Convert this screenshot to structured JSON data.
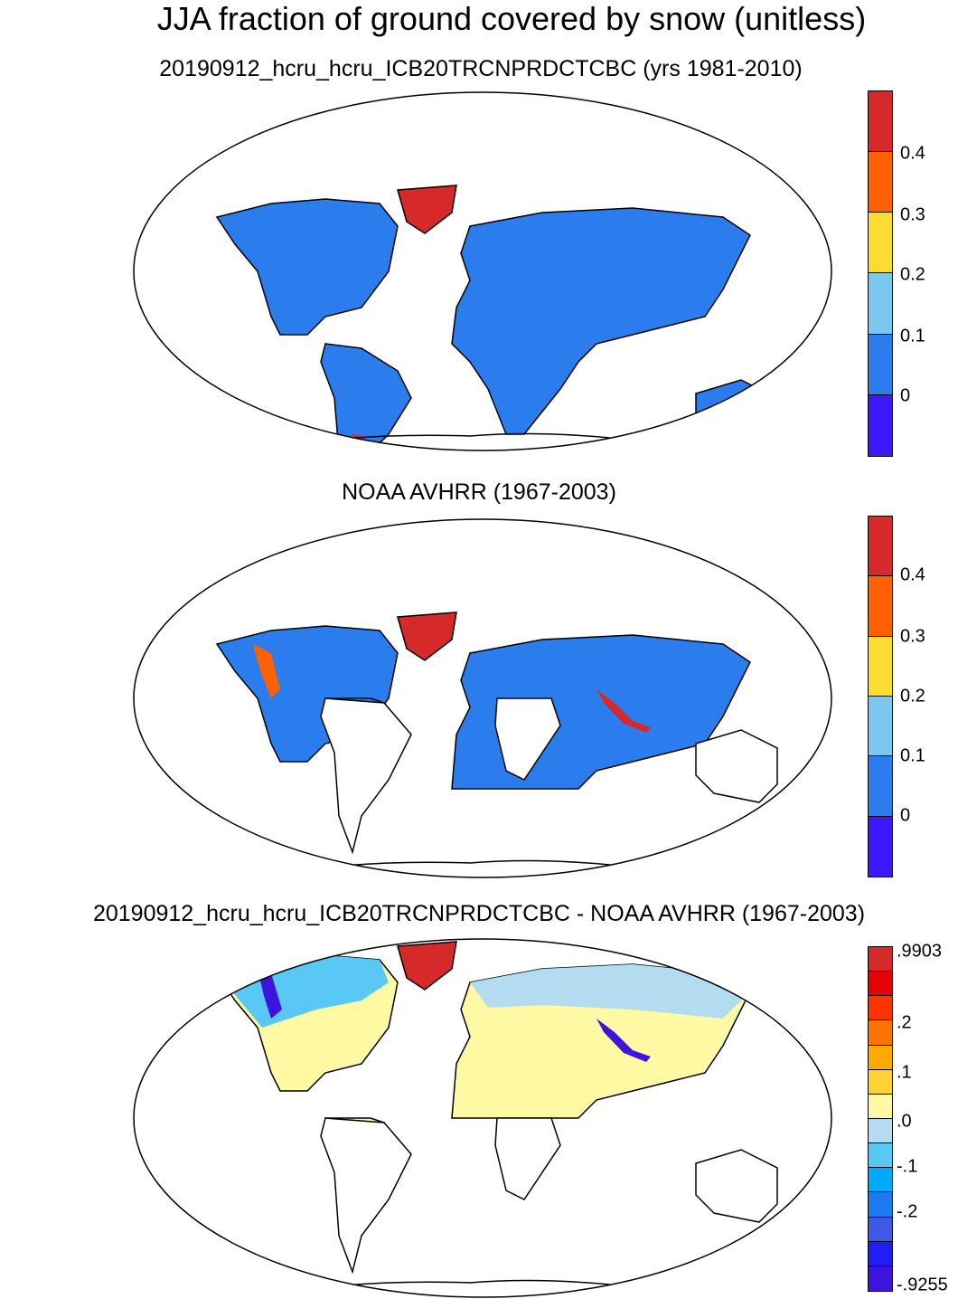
{
  "title": "JJA fraction of ground covered by snow (unitless)",
  "panels": [
    {
      "title": "20190912_hcru_hcru_ICB20TRCNPRDCTCBC (yrs 1981-2010)",
      "colorbar": {
        "colors": [
          "#d62a2a",
          "#ff6000",
          "#fddc32",
          "#7cc7f0",
          "#2b7ded",
          "#3c18fa"
        ],
        "labels": [
          "0.4",
          "0.3",
          "0.2",
          "0.1",
          "0"
        ]
      }
    },
    {
      "title": "NOAA AVHRR (1967-2003)",
      "colorbar": {
        "colors": [
          "#d62a2a",
          "#ff6000",
          "#fddc32",
          "#7cc7f0",
          "#2b7ded",
          "#3c18fa"
        ],
        "labels": [
          "0.4",
          "0.3",
          "0.2",
          "0.1",
          "0"
        ]
      }
    },
    {
      "title": "20190912_hcru_hcru_ICB20TRCNPRDCTCBC - NOAA AVHRR (1967-2003)",
      "colorbar": {
        "colors": [
          "#d62a2a",
          "#e60000",
          "#ff3200",
          "#ff7300",
          "#ffaa00",
          "#ffd234",
          "#fff9a4",
          "#b4dcf0",
          "#5ac8f5",
          "#00aaff",
          "#1e78f0",
          "#3c5ae6",
          "#1e1ef5",
          "#3c14dc"
        ],
        "labels": [
          ".9903",
          ".2",
          ".1",
          ".0",
          "-.1",
          "-.2",
          "-.9255"
        ]
      }
    }
  ]
}
